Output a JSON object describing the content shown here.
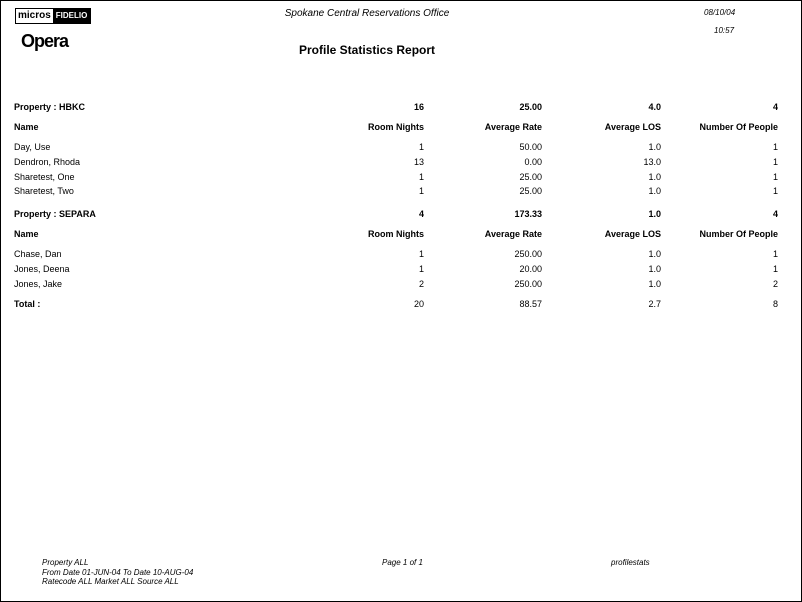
{
  "header": {
    "logo_micros": "micros",
    "logo_fidelio": "FIDELIO",
    "logo_opera": "Opera",
    "office": "Spokane Central Reservations Office",
    "date": "08/10/04",
    "time": "10:57",
    "title": "Profile Statistics Report"
  },
  "columns": [
    "Name",
    "Room Nights",
    "Average Rate",
    "Average LOS",
    "Number Of People"
  ],
  "properties": [
    {
      "label": "Property :  HBKC",
      "totals": [
        "16",
        "25.00",
        "4.0",
        "4"
      ],
      "rows": [
        [
          "Day, Use",
          "1",
          "50.00",
          "1.0",
          "1"
        ],
        [
          "Dendron, Rhoda",
          "13",
          "0.00",
          "13.0",
          "1"
        ],
        [
          "Sharetest, One",
          "1",
          "25.00",
          "1.0",
          "1"
        ],
        [
          "Sharetest, Two",
          "1",
          "25.00",
          "1.0",
          "1"
        ]
      ]
    },
    {
      "label": "Property :  SEPARA",
      "totals": [
        "4",
        "173.33",
        "1.0",
        "4"
      ],
      "rows": [
        [
          "Chase, Dan",
          "1",
          "250.00",
          "1.0",
          "1"
        ],
        [
          "Jones, Deena",
          "1",
          "20.00",
          "1.0",
          "1"
        ],
        [
          "Jones, Jake",
          "2",
          "250.00",
          "1.0",
          "2"
        ]
      ]
    }
  ],
  "total": {
    "label": "Total :",
    "values": [
      "20",
      "88.57",
      "2.7",
      "8"
    ]
  },
  "footer": {
    "line1": "Property  ALL",
    "line2": "From Date 01-JUN-04   To Date 10-AUG-04",
    "line3": "Ratecode  ALL   Market  ALL   Source  ALL",
    "page": "Page 1 of 1",
    "report": "profilestats"
  }
}
